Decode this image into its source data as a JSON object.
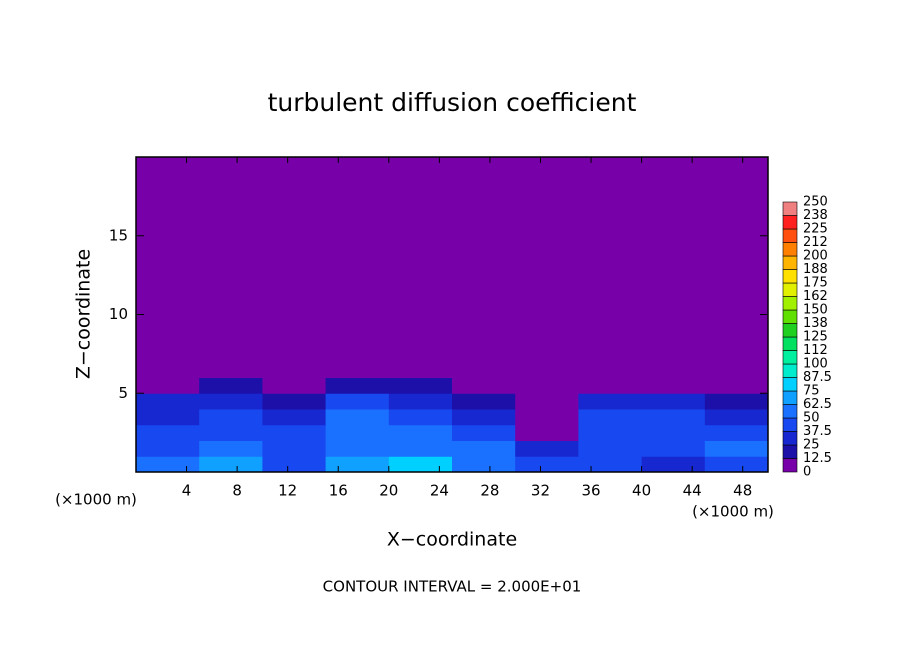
{
  "chart_data": {
    "type": "contour",
    "title": "turbulent diffusion coefficient",
    "xlabel": "X−coordinate",
    "ylabel": "Z−coordinate",
    "x_unit": "(×1000 m)",
    "x_unit_right": "(×1000 m)",
    "footnote": "CONTOUR INTERVAL = 2.000E+01",
    "xlim": [
      0,
      50
    ],
    "ylim": [
      0,
      20
    ],
    "xticks": [
      4,
      8,
      12,
      16,
      20,
      24,
      28,
      32,
      36,
      40,
      44,
      48
    ],
    "yticks": [
      5,
      10,
      15
    ],
    "field": {
      "x_edges": [
        0,
        5,
        10,
        15,
        20,
        25,
        30,
        35,
        40,
        45,
        50
      ],
      "z_edges": [
        0,
        1,
        2,
        3,
        4,
        5,
        6,
        20
      ],
      "values": [
        [
          55,
          65,
          45,
          70,
          75,
          55,
          40,
          45,
          35,
          40
        ],
        [
          45,
          55,
          40,
          60,
          60,
          50,
          35,
          45,
          40,
          50
        ],
        [
          40,
          45,
          40,
          55,
          50,
          40,
          10,
          45,
          45,
          40
        ],
        [
          30,
          40,
          30,
          50,
          45,
          30,
          5,
          40,
          40,
          30
        ],
        [
          25,
          35,
          20,
          40,
          30,
          20,
          5,
          30,
          30,
          20
        ],
        [
          5,
          15,
          5,
          20,
          15,
          10,
          0,
          5,
          10,
          5
        ],
        [
          0,
          0,
          0,
          0,
          0,
          0,
          0,
          0,
          0,
          0
        ]
      ]
    },
    "colorbar": {
      "levels": [
        0,
        12.5,
        25,
        37.5,
        50,
        62.5,
        75,
        87.5,
        100,
        112,
        125,
        138,
        150,
        162,
        175,
        188,
        200,
        212,
        225,
        238,
        250
      ],
      "colors": [
        "#7800a8",
        "#1c10a8",
        "#1828d0",
        "#1848f0",
        "#1a70ff",
        "#10a0ff",
        "#00d0ff",
        "#00eccc",
        "#00f0a0",
        "#00e060",
        "#20d020",
        "#60e000",
        "#a0f000",
        "#e0f000",
        "#ffe000",
        "#ffb400",
        "#ff8000",
        "#ff5010",
        "#ff2020",
        "#f08080"
      ]
    }
  }
}
